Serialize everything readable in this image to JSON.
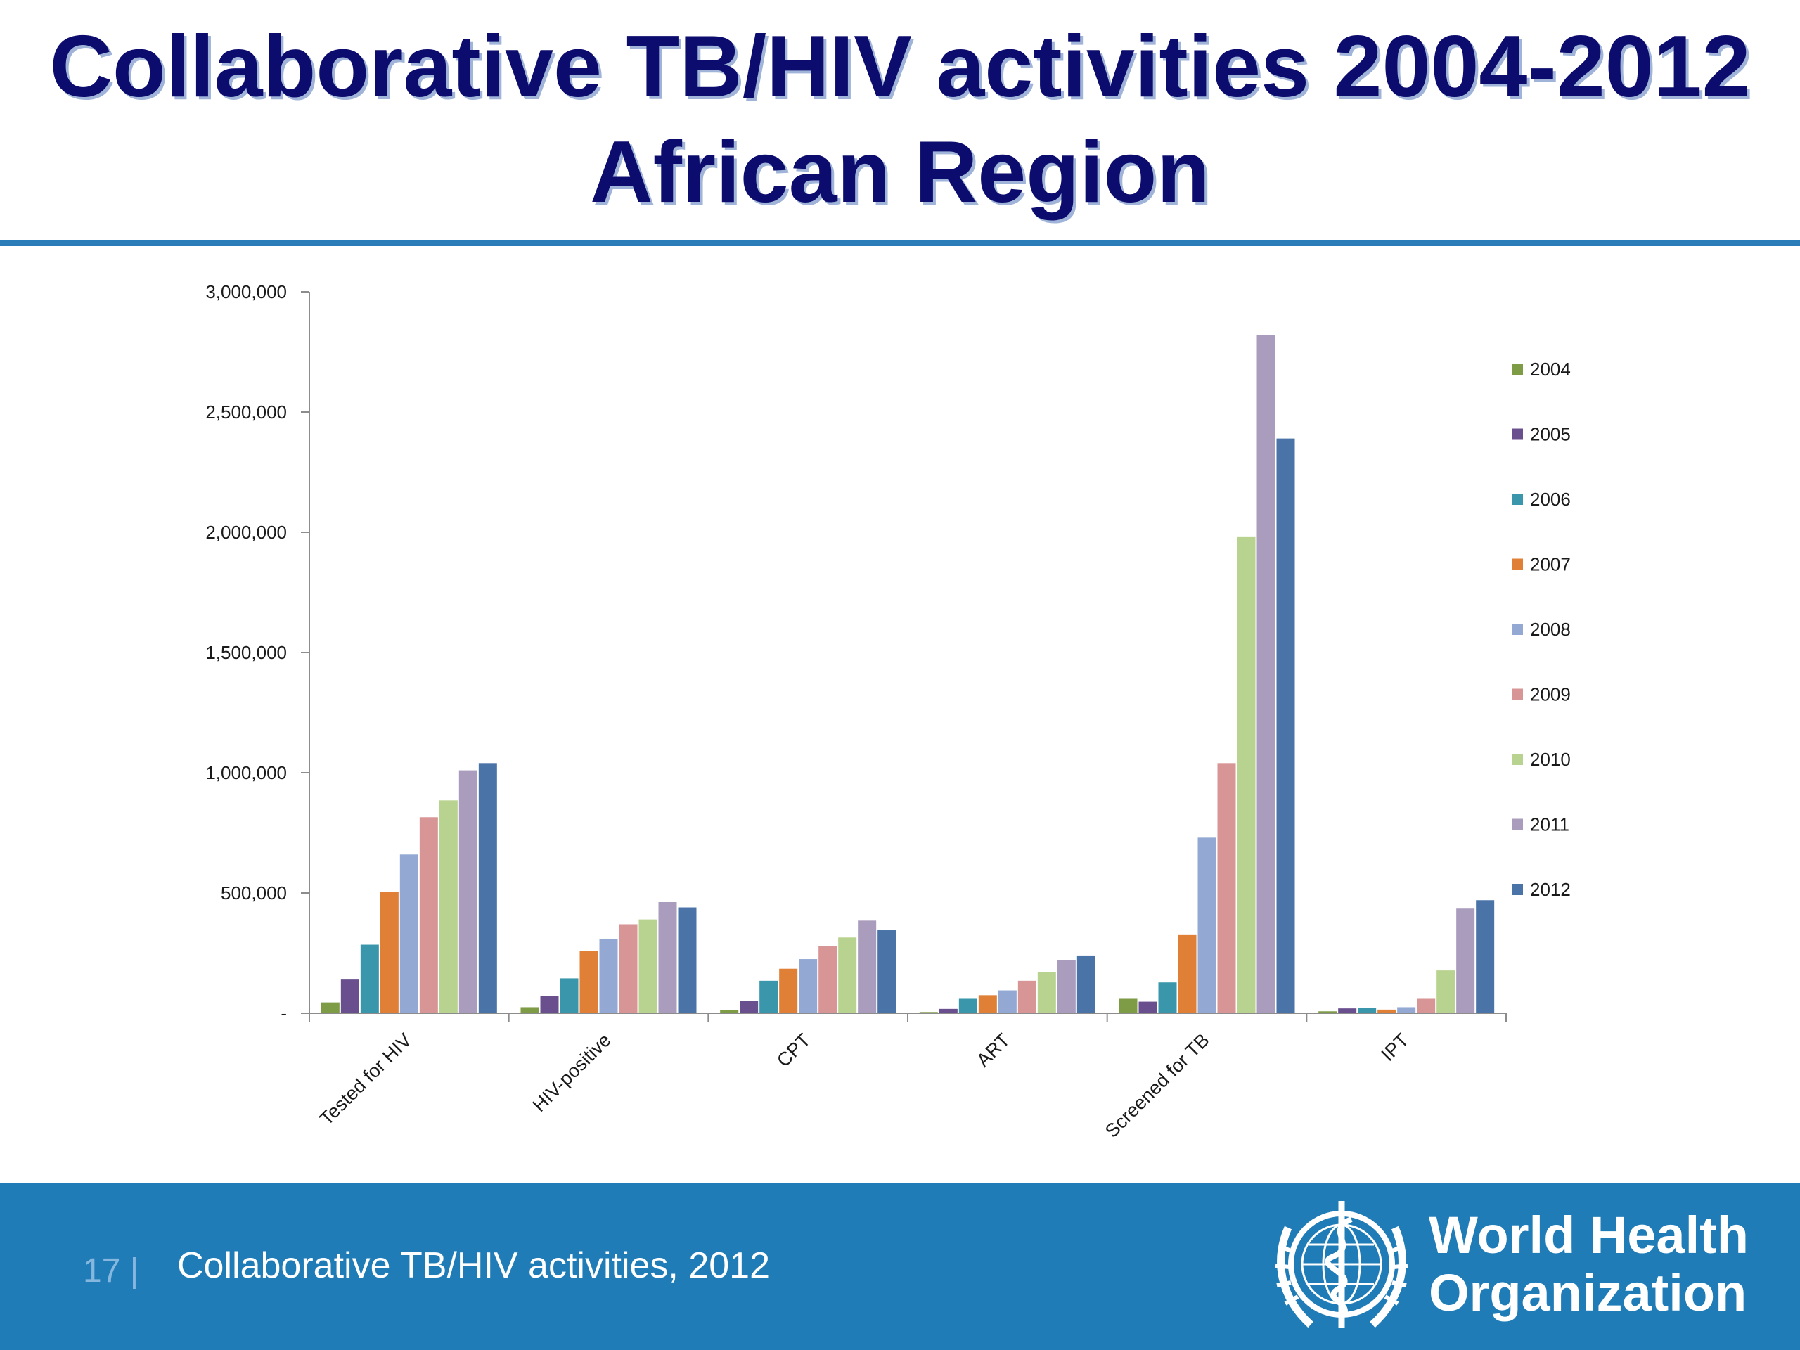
{
  "title": {
    "line1": "Collaborative TB/HIV activities 2004-2012",
    "line2": "African Region"
  },
  "footer": {
    "page_number": "17 |",
    "caption": "Collaborative TB/HIV activities, 2012",
    "organization_line1": "World Health",
    "organization_line2": "Organization",
    "logo_icon": "who-emblem-icon"
  },
  "colors": {
    "title": "#0c0c6e",
    "title_shadow": "#9fb4d8",
    "rule": "#2a7db9",
    "footer_background": "#1f7cb7",
    "page_number": "#86b7df"
  },
  "chart_data": {
    "type": "bar",
    "categories": [
      "Tested for HIV",
      "HIV-positive",
      "CPT",
      "ART",
      "Screened for TB",
      "IPT"
    ],
    "ylim": [
      0,
      3000000
    ],
    "yticks": [
      0,
      500000,
      1000000,
      1500000,
      2000000,
      2500000,
      3000000
    ],
    "ytick_labels": [
      "-",
      "500,000",
      "1,000,000",
      "1,500,000",
      "2,000,000",
      "2,500,000",
      "3,000,000"
    ],
    "grid": false,
    "legend_position": "right",
    "series": [
      {
        "name": "2004",
        "color": "#7d9c45",
        "values": [
          45000,
          25000,
          12000,
          5000,
          60000,
          8000
        ]
      },
      {
        "name": "2005",
        "color": "#6a4f8f",
        "values": [
          140000,
          72000,
          50000,
          18000,
          48000,
          20000
        ]
      },
      {
        "name": "2006",
        "color": "#3a97ab",
        "values": [
          285000,
          145000,
          135000,
          60000,
          128000,
          22000
        ]
      },
      {
        "name": "2007",
        "color": "#e07f36",
        "values": [
          505000,
          260000,
          185000,
          75000,
          325000,
          15000
        ]
      },
      {
        "name": "2008",
        "color": "#93a9d4",
        "values": [
          660000,
          310000,
          225000,
          95000,
          730000,
          25000
        ]
      },
      {
        "name": "2009",
        "color": "#d89595",
        "values": [
          815000,
          370000,
          280000,
          135000,
          1040000,
          60000
        ]
      },
      {
        "name": "2010",
        "color": "#b8d28f",
        "values": [
          885000,
          390000,
          315000,
          170000,
          1980000,
          178000
        ]
      },
      {
        "name": "2011",
        "color": "#a99cbd",
        "values": [
          1010000,
          462000,
          385000,
          220000,
          2820000,
          435000
        ]
      },
      {
        "name": "2012",
        "color": "#4a73a8",
        "values": [
          1040000,
          440000,
          345000,
          240000,
          2390000,
          470000
        ]
      }
    ]
  }
}
